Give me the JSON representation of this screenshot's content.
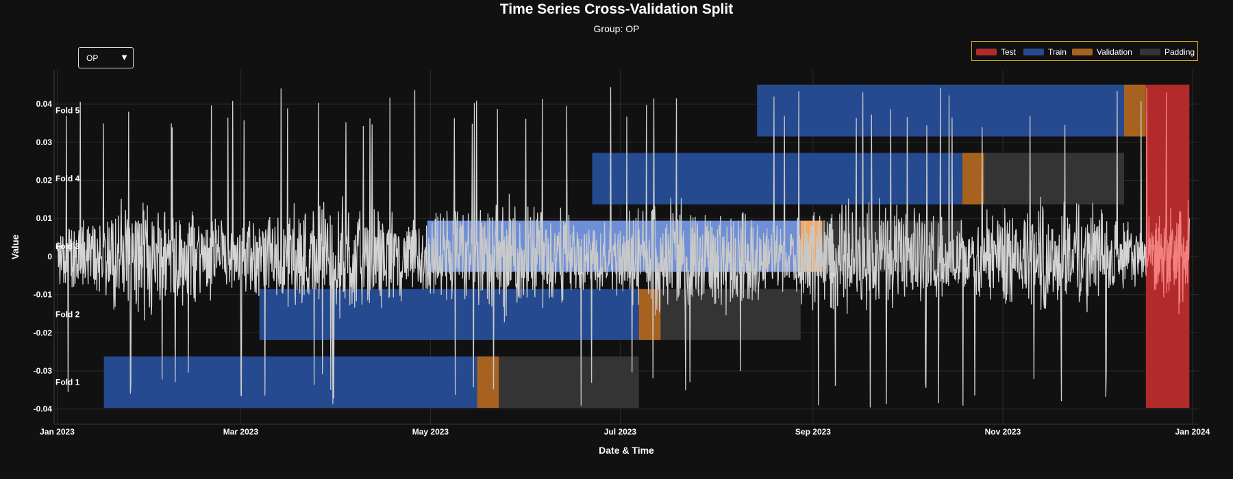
{
  "chart_data": {
    "type": "timeline",
    "title": "Time Series Cross-Validation Split",
    "subtitle": "Group: OP",
    "xlabel": "Date & Time",
    "ylabel": "Value",
    "x_range": [
      "2022-12-31",
      "2024-01-03"
    ],
    "y_range": [
      -0.044,
      0.049
    ],
    "x_ticks": [
      {
        "date": "2023-01-01",
        "label": "Jan 2023"
      },
      {
        "date": "2023-03-01",
        "label": "Mar 2023"
      },
      {
        "date": "2023-05-01",
        "label": "May 2023"
      },
      {
        "date": "2023-07-01",
        "label": "Jul 2023"
      },
      {
        "date": "2023-09-01",
        "label": "Sep 2023"
      },
      {
        "date": "2023-11-01",
        "label": "Nov 2023"
      },
      {
        "date": "2024-01-01",
        "label": "Jan 2024"
      }
    ],
    "y_ticks": [
      {
        "value": 0.04,
        "label": "0.04"
      },
      {
        "value": 0.03,
        "label": "0.03"
      },
      {
        "value": 0.02,
        "label": "0.02"
      },
      {
        "value": 0.01,
        "label": "0.01"
      },
      {
        "value": 0,
        "label": "0"
      },
      {
        "value": -0.01,
        "label": "-0.01"
      },
      {
        "value": -0.02,
        "label": "-0.02"
      },
      {
        "value": -0.03,
        "label": "-0.03"
      },
      {
        "value": -0.04,
        "label": "-0.04"
      }
    ],
    "grid": true,
    "legend": {
      "placement": "top-right",
      "items": [
        {
          "name": "Test",
          "color": "#b22a2a"
        },
        {
          "name": "Train",
          "color": "#254a8f"
        },
        {
          "name": "Validation",
          "color": "#a8621f"
        },
        {
          "name": "Padding",
          "color": "#343434"
        }
      ]
    },
    "colors": {
      "series_line": "#d3d3d3",
      "test": "#b22a2a",
      "train": "#254a8f",
      "validation": "#a8621f",
      "padding": "#343434",
      "test_overlay_line": "#f28080",
      "train_overlay_fill": "#6e8fd6",
      "validation_overlay_fill": "#f2a866"
    },
    "folds": [
      {
        "label": "Fold 1",
        "y_range": [
          -0.0397,
          -0.0262
        ],
        "train": [
          "2023-01-16",
          "2023-05-16"
        ],
        "validation": [
          "2023-05-16",
          "2023-05-23"
        ],
        "padding": [
          "2023-05-23",
          "2023-07-07"
        ]
      },
      {
        "label": "Fold 2",
        "y_range": [
          -0.0219,
          -0.0085
        ],
        "train": [
          "2023-03-07",
          "2023-07-07"
        ],
        "validation": [
          "2023-07-07",
          "2023-07-14"
        ],
        "padding": [
          "2023-07-14",
          "2023-08-28"
        ]
      },
      {
        "label": "Fold 3",
        "y_range": [
          -0.004,
          0.0094
        ],
        "train": [
          "2023-04-30",
          "2023-08-28"
        ],
        "validation": [
          "2023-08-28",
          "2023-09-04"
        ],
        "padding": [
          "2023-09-04",
          "2023-10-19"
        ]
      },
      {
        "label": "Fold 4",
        "y_range": [
          0.0137,
          0.0272
        ],
        "train": [
          "2023-06-22",
          "2023-10-19"
        ],
        "validation": [
          "2023-10-19",
          "2023-10-26"
        ],
        "padding": [
          "2023-10-26",
          "2023-12-10"
        ]
      },
      {
        "label": "Fold 5",
        "y_range": [
          0.0315,
          0.0451
        ],
        "train": [
          "2023-08-14",
          "2023-12-10"
        ],
        "validation": [
          "2023-12-10",
          "2023-12-17"
        ]
      }
    ],
    "test": {
      "range": [
        "2023-12-17",
        "2023-12-31"
      ],
      "y_range": [
        -0.0397,
        0.0451
      ]
    },
    "series": {
      "name": "OP",
      "start": "2023-01-01",
      "end": "2023-12-31",
      "noise_amplitude": 0.018,
      "spike_ceiling": 0.045,
      "spike_floor": -0.04
    }
  },
  "dropdown": {
    "selected": "OP",
    "arrow": "▼"
  }
}
